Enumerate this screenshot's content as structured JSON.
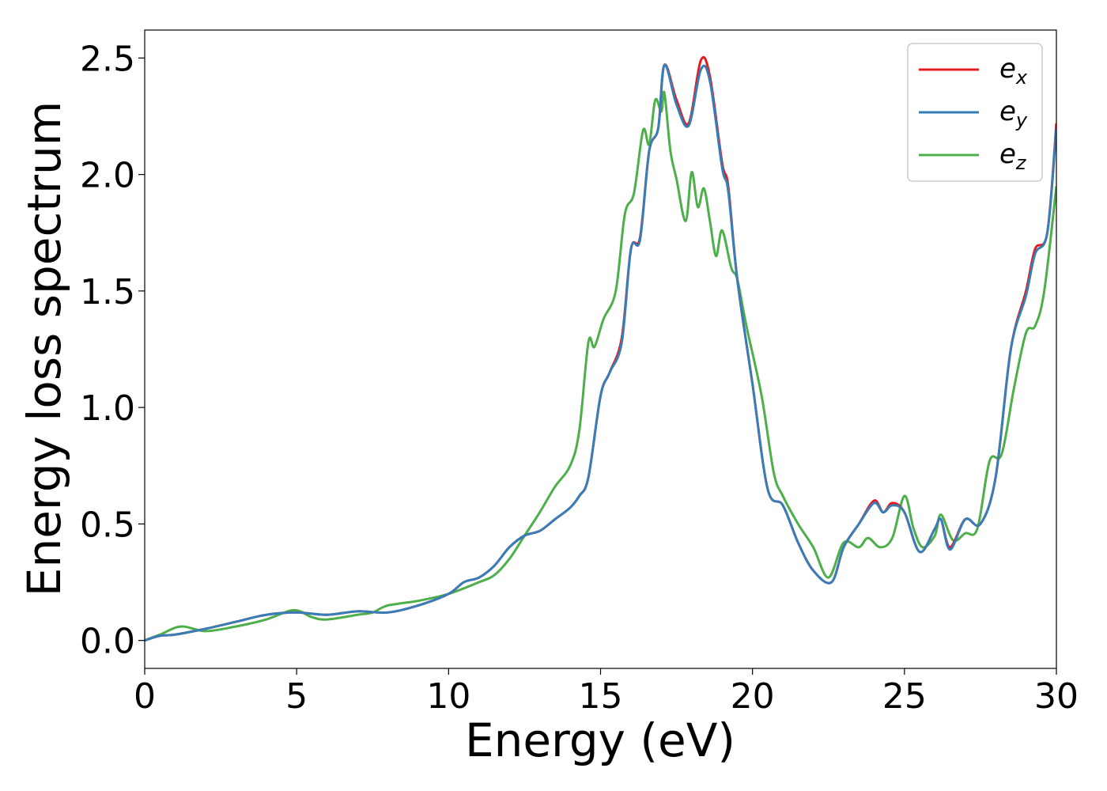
{
  "chart_data": {
    "type": "line",
    "xlabel": "Energy (eV)",
    "ylabel": "Energy loss spectrum",
    "xlim": [
      0,
      30
    ],
    "ylim": [
      -0.12,
      2.62
    ],
    "xticks": [
      0,
      5,
      10,
      15,
      20,
      25,
      30
    ],
    "xtick_labels": [
      "0",
      "5",
      "10",
      "15",
      "20",
      "25",
      "30"
    ],
    "yticks": [
      0.0,
      0.5,
      1.0,
      1.5,
      2.0,
      2.5
    ],
    "ytick_labels": [
      "0.0",
      "0.5",
      "1.0",
      "1.5",
      "2.0",
      "2.5"
    ],
    "grid": false,
    "legend_position": "top-right",
    "series": [
      {
        "name": "e_x",
        "label_main": "e",
        "label_sub": "x",
        "color": "#e41a1c",
        "points": [
          [
            0,
            0
          ],
          [
            0.5,
            0.02
          ],
          [
            1,
            0.025
          ],
          [
            2,
            0.05
          ],
          [
            3,
            0.08
          ],
          [
            4,
            0.11
          ],
          [
            5,
            0.12
          ],
          [
            6,
            0.11
          ],
          [
            7,
            0.125
          ],
          [
            8,
            0.12
          ],
          [
            9,
            0.15
          ],
          [
            10,
            0.2
          ],
          [
            10.5,
            0.25
          ],
          [
            11,
            0.27
          ],
          [
            11.5,
            0.32
          ],
          [
            12,
            0.4
          ],
          [
            12.5,
            0.45
          ],
          [
            13,
            0.47
          ],
          [
            13.5,
            0.52
          ],
          [
            14,
            0.57
          ],
          [
            14.3,
            0.62
          ],
          [
            14.6,
            0.7
          ],
          [
            15,
            1.05
          ],
          [
            15.3,
            1.15
          ],
          [
            15.7,
            1.3
          ],
          [
            16,
            1.68
          ],
          [
            16.3,
            1.73
          ],
          [
            16.6,
            2.1
          ],
          [
            16.9,
            2.2
          ],
          [
            17.1,
            2.47
          ],
          [
            17.5,
            2.32
          ],
          [
            17.9,
            2.22
          ],
          [
            18.3,
            2.49
          ],
          [
            18.6,
            2.42
          ],
          [
            19,
            2.05
          ],
          [
            19.2,
            1.95
          ],
          [
            19.5,
            1.55
          ],
          [
            20,
            1.1
          ],
          [
            20.5,
            0.65
          ],
          [
            21,
            0.58
          ],
          [
            21.5,
            0.42
          ],
          [
            22,
            0.3
          ],
          [
            22.6,
            0.25
          ],
          [
            23,
            0.4
          ],
          [
            23.5,
            0.5
          ],
          [
            24,
            0.6
          ],
          [
            24.3,
            0.55
          ],
          [
            24.6,
            0.59
          ],
          [
            25,
            0.55
          ],
          [
            25.5,
            0.38
          ],
          [
            26,
            0.48
          ],
          [
            26.2,
            0.52
          ],
          [
            26.5,
            0.4
          ],
          [
            27,
            0.52
          ],
          [
            27.5,
            0.5
          ],
          [
            28,
            0.7
          ],
          [
            28.5,
            1.25
          ],
          [
            29,
            1.5
          ],
          [
            29.3,
            1.68
          ],
          [
            29.7,
            1.75
          ],
          [
            30,
            2.22
          ]
        ]
      },
      {
        "name": "e_y",
        "label_main": "e",
        "label_sub": "y",
        "color": "#377eb8",
        "points": [
          [
            0,
            0
          ],
          [
            0.5,
            0.02
          ],
          [
            1,
            0.025
          ],
          [
            2,
            0.05
          ],
          [
            3,
            0.08
          ],
          [
            4,
            0.11
          ],
          [
            5,
            0.12
          ],
          [
            6,
            0.11
          ],
          [
            7,
            0.125
          ],
          [
            8,
            0.12
          ],
          [
            9,
            0.15
          ],
          [
            10,
            0.2
          ],
          [
            10.5,
            0.25
          ],
          [
            11,
            0.27
          ],
          [
            11.5,
            0.32
          ],
          [
            12,
            0.4
          ],
          [
            12.5,
            0.45
          ],
          [
            13,
            0.47
          ],
          [
            13.5,
            0.52
          ],
          [
            14,
            0.57
          ],
          [
            14.3,
            0.62
          ],
          [
            14.6,
            0.7
          ],
          [
            15,
            1.05
          ],
          [
            15.3,
            1.15
          ],
          [
            15.7,
            1.28
          ],
          [
            16,
            1.68
          ],
          [
            16.3,
            1.72
          ],
          [
            16.6,
            2.1
          ],
          [
            16.9,
            2.2
          ],
          [
            17.1,
            2.47
          ],
          [
            17.5,
            2.3
          ],
          [
            17.9,
            2.21
          ],
          [
            18.3,
            2.45
          ],
          [
            18.6,
            2.4
          ],
          [
            19,
            2.03
          ],
          [
            19.2,
            1.93
          ],
          [
            19.5,
            1.55
          ],
          [
            20,
            1.1
          ],
          [
            20.5,
            0.65
          ],
          [
            21,
            0.58
          ],
          [
            21.5,
            0.42
          ],
          [
            22,
            0.3
          ],
          [
            22.6,
            0.25
          ],
          [
            23,
            0.4
          ],
          [
            23.5,
            0.5
          ],
          [
            24,
            0.59
          ],
          [
            24.3,
            0.55
          ],
          [
            24.6,
            0.58
          ],
          [
            25,
            0.55
          ],
          [
            25.5,
            0.38
          ],
          [
            26,
            0.48
          ],
          [
            26.2,
            0.52
          ],
          [
            26.5,
            0.39
          ],
          [
            27,
            0.52
          ],
          [
            27.5,
            0.5
          ],
          [
            28,
            0.7
          ],
          [
            28.5,
            1.25
          ],
          [
            29,
            1.48
          ],
          [
            29.3,
            1.66
          ],
          [
            29.7,
            1.75
          ],
          [
            30,
            2.2
          ]
        ]
      },
      {
        "name": "e_z",
        "label_main": "e",
        "label_sub": "z",
        "color": "#4daf4a",
        "points": [
          [
            0,
            0
          ],
          [
            0.5,
            0.025
          ],
          [
            1.2,
            0.06
          ],
          [
            2,
            0.04
          ],
          [
            3,
            0.06
          ],
          [
            4,
            0.09
          ],
          [
            4.9,
            0.13
          ],
          [
            5.5,
            0.1
          ],
          [
            6,
            0.09
          ],
          [
            7,
            0.11
          ],
          [
            7.5,
            0.12
          ],
          [
            8,
            0.15
          ],
          [
            9,
            0.17
          ],
          [
            10,
            0.2
          ],
          [
            11,
            0.25
          ],
          [
            11.5,
            0.28
          ],
          [
            12,
            0.35
          ],
          [
            12.5,
            0.45
          ],
          [
            13,
            0.55
          ],
          [
            13.5,
            0.66
          ],
          [
            14,
            0.75
          ],
          [
            14.3,
            0.9
          ],
          [
            14.6,
            1.28
          ],
          [
            14.8,
            1.26
          ],
          [
            15.1,
            1.38
          ],
          [
            15.5,
            1.5
          ],
          [
            15.8,
            1.83
          ],
          [
            16.1,
            1.92
          ],
          [
            16.4,
            2.19
          ],
          [
            16.6,
            2.13
          ],
          [
            16.8,
            2.32
          ],
          [
            17,
            2.27
          ],
          [
            17.1,
            2.35
          ],
          [
            17.3,
            2.1
          ],
          [
            17.5,
            1.98
          ],
          [
            17.8,
            1.8
          ],
          [
            18,
            2.01
          ],
          [
            18.2,
            1.86
          ],
          [
            18.4,
            1.94
          ],
          [
            18.6,
            1.8
          ],
          [
            18.8,
            1.65
          ],
          [
            19,
            1.76
          ],
          [
            19.3,
            1.6
          ],
          [
            19.5,
            1.55
          ],
          [
            19.8,
            1.35
          ],
          [
            20.3,
            1.05
          ],
          [
            20.7,
            0.72
          ],
          [
            21,
            0.62
          ],
          [
            21.5,
            0.5
          ],
          [
            22,
            0.4
          ],
          [
            22.5,
            0.27
          ],
          [
            23,
            0.42
          ],
          [
            23.5,
            0.4
          ],
          [
            23.8,
            0.44
          ],
          [
            24.2,
            0.4
          ],
          [
            24.6,
            0.44
          ],
          [
            25,
            0.62
          ],
          [
            25.3,
            0.48
          ],
          [
            25.6,
            0.4
          ],
          [
            26,
            0.45
          ],
          [
            26.2,
            0.54
          ],
          [
            26.6,
            0.43
          ],
          [
            27,
            0.46
          ],
          [
            27.4,
            0.48
          ],
          [
            27.8,
            0.77
          ],
          [
            28.2,
            0.8
          ],
          [
            28.6,
            1.08
          ],
          [
            29,
            1.32
          ],
          [
            29.3,
            1.35
          ],
          [
            29.6,
            1.5
          ],
          [
            30,
            1.95
          ]
        ]
      }
    ]
  }
}
